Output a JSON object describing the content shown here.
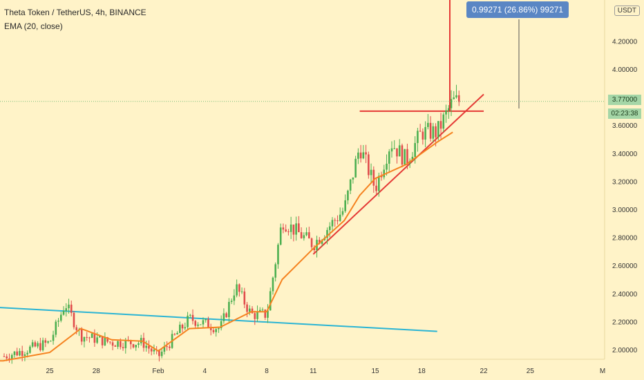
{
  "header": {
    "title": "Theta Token / TetherUS, 4h, BINANCE",
    "indicator": "EMA (20, close)"
  },
  "scale": {
    "currency": "USDT"
  },
  "measure": {
    "label": "0.99271 (26.86%) 99271"
  },
  "last_price": {
    "value": "3.77000",
    "countdown": "02:23:38"
  },
  "colors": {
    "background": "#fff3c8",
    "up": "#4caf50",
    "down": "#e04b4b",
    "ema": "#f5821f",
    "trendline_blue": "#2ab4d4",
    "trendline_red": "#e53935",
    "measure_bg": "#5a86c4",
    "last_price_bg": "#a5d6a7"
  },
  "chart_data": {
    "type": "candlestick",
    "title": "Theta Token / TetherUS, 4h, BINANCE",
    "ylim": [
      1.85,
      4.45
    ],
    "y_ticks": [
      "2.00000",
      "2.20000",
      "2.40000",
      "2.60000",
      "2.80000",
      "3.00000",
      "3.20000",
      "3.40000",
      "3.60000",
      "3.80000",
      "4.00000",
      "4.20000"
    ],
    "x_ticks": [
      "25",
      "28",
      "Feb",
      "4",
      "8",
      "11",
      "15",
      "18",
      "22",
      "25",
      "M"
    ],
    "close_path": [
      {
        "date": "Jan 22",
        "close": 1.95
      },
      {
        "date": "Jan 25",
        "close": 2.05
      },
      {
        "date": "Jan 26",
        "close": 2.33
      },
      {
        "date": "Jan 27",
        "close": 2.1
      },
      {
        "date": "Jan 29",
        "close": 2.05
      },
      {
        "date": "Jan 31",
        "close": 2.05
      },
      {
        "date": "Feb 1",
        "close": 1.95
      },
      {
        "date": "Feb 3",
        "close": 2.22
      },
      {
        "date": "Feb 5",
        "close": 2.15
      },
      {
        "date": "Feb 6",
        "close": 2.45
      },
      {
        "date": "Feb 7",
        "close": 2.25
      },
      {
        "date": "Feb 8",
        "close": 2.25
      },
      {
        "date": "Feb 9",
        "close": 2.92
      },
      {
        "date": "Feb 11",
        "close": 2.75
      },
      {
        "date": "Feb 13",
        "close": 3.0
      },
      {
        "date": "Feb 14",
        "close": 3.45
      },
      {
        "date": "Feb 15",
        "close": 3.15
      },
      {
        "date": "Feb 16",
        "close": 3.48
      },
      {
        "date": "Feb 17",
        "close": 3.35
      },
      {
        "date": "Feb 18",
        "close": 3.55
      },
      {
        "date": "Feb 19",
        "close": 3.55
      },
      {
        "date": "Feb 20",
        "close": 3.77
      }
    ],
    "ema20": [
      {
        "date": "Jan 22",
        "value": 1.92
      },
      {
        "date": "Jan 25",
        "value": 1.98
      },
      {
        "date": "Jan 27",
        "value": 2.15
      },
      {
        "date": "Jan 29",
        "value": 2.07
      },
      {
        "date": "Jan 31",
        "value": 2.06
      },
      {
        "date": "Feb 1",
        "value": 1.99
      },
      {
        "date": "Feb 3",
        "value": 2.15
      },
      {
        "date": "Feb 5",
        "value": 2.16
      },
      {
        "date": "Feb 7",
        "value": 2.27
      },
      {
        "date": "Feb 8",
        "value": 2.27
      },
      {
        "date": "Feb 9",
        "value": 2.5
      },
      {
        "date": "Feb 11",
        "value": 2.72
      },
      {
        "date": "Feb 13",
        "value": 2.92
      },
      {
        "date": "Feb 14",
        "value": 3.1
      },
      {
        "date": "Feb 15",
        "value": 3.22
      },
      {
        "date": "Feb 17",
        "value": 3.32
      },
      {
        "date": "Feb 19",
        "value": 3.48
      },
      {
        "date": "Feb 20",
        "value": 3.55
      }
    ],
    "trendlines": [
      {
        "color": "trendline_blue",
        "from": {
          "date": "Jan 20",
          "value": 2.33
        },
        "to": {
          "date": "Feb 19",
          "value": 2.13
        }
      },
      {
        "color": "trendline_red",
        "from": {
          "date": "Feb 11",
          "value": 2.68
        },
        "to": {
          "date": "Feb 22",
          "value": 3.82
        }
      },
      {
        "color": "trendline_red",
        "from": {
          "date": "Feb 14",
          "value": 3.7
        },
        "to": {
          "date": "Feb 22",
          "value": 3.7
        }
      }
    ]
  }
}
